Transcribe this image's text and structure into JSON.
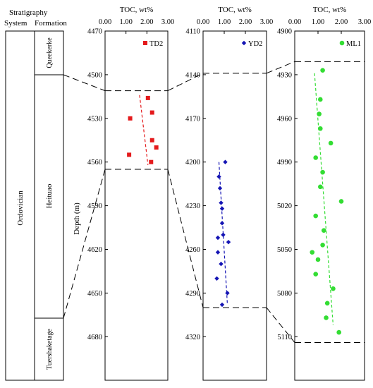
{
  "header": {
    "stratigraphy": "Stratigraphy",
    "system": "System",
    "formation": "Formation"
  },
  "strat_column": {
    "system_label": "Ordovician",
    "formations": [
      "Queekerke",
      "Heituao",
      "Tuershaketage"
    ]
  },
  "depth_axis_label": "Depth (m)",
  "colors": {
    "TD2": "#e41a1c",
    "YD2": "#1414b4",
    "ML1": "#33dd33"
  },
  "chart_data": [
    {
      "type": "scatter",
      "well": "TD2",
      "marker": "square",
      "xlabel": "TOC, wt%",
      "ylabel": "Depth (m)",
      "xlim": [
        0,
        3
      ],
      "ylim": [
        4470,
        4710
      ],
      "y_inverted": true,
      "x_ticks": [
        "0.00",
        "1.00",
        "2.00",
        "3.00"
      ],
      "y_ticks": [
        "4470",
        "4500",
        "4530",
        "4560",
        "4590",
        "4620",
        "4650",
        "4680"
      ],
      "legend": "TD2",
      "legend_position": "top-right",
      "x": [
        2.05,
        1.2,
        2.25,
        2.25,
        2.45,
        1.15,
        2.2
      ],
      "y": [
        4516,
        4530,
        4526,
        4545,
        4550,
        4555,
        4560
      ],
      "trend": {
        "x": [
          1.65,
          2.05
        ],
        "y": [
          4514,
          4562
        ]
      },
      "boundaries": [
        4511,
        4565
      ]
    },
    {
      "type": "scatter",
      "well": "YD2",
      "marker": "diamond",
      "xlabel": "TOC, wt%",
      "xlim": [
        0,
        3
      ],
      "ylim": [
        4110,
        4350
      ],
      "y_inverted": true,
      "x_ticks": [
        "0.00",
        "1.00",
        "2.00",
        "3.00"
      ],
      "y_ticks": [
        "4110",
        "4140",
        "4170",
        "4200",
        "4230",
        "4260",
        "4290",
        "4320"
      ],
      "legend": "YD2",
      "legend_position": "top-right",
      "x": [
        1.05,
        0.75,
        0.8,
        0.85,
        0.9,
        0.9,
        0.95,
        0.7,
        1.2,
        0.7,
        0.85,
        0.65,
        1.15,
        0.9
      ],
      "y": [
        4200,
        4210,
        4218,
        4228,
        4232,
        4242,
        4250,
        4252,
        4255,
        4262,
        4270,
        4280,
        4290,
        4298
      ],
      "trend": {
        "x": [
          0.75,
          1.15
        ],
        "y": [
          4200,
          4298
        ]
      },
      "boundaries": [
        4139,
        4300
      ]
    },
    {
      "type": "scatter",
      "well": "ML1",
      "marker": "circle",
      "xlabel": "TOC, wt%",
      "xlim": [
        0,
        3
      ],
      "ylim": [
        4900,
        5140
      ],
      "y_inverted": true,
      "x_ticks": [
        "0.00",
        "1.00",
        "2.00",
        "3.00"
      ],
      "y_ticks": [
        "4900",
        "4930",
        "4960",
        "4990",
        "5020",
        "5050",
        "5080",
        "5110"
      ],
      "legend": "ML1",
      "legend_position": "top-right",
      "x": [
        1.2,
        1.1,
        1.05,
        1.1,
        1.55,
        0.9,
        1.2,
        1.1,
        2.0,
        0.9,
        1.25,
        1.2,
        0.75,
        1.0,
        0.9,
        1.65,
        1.4,
        1.35,
        1.9
      ],
      "y": [
        4927,
        4947,
        4957,
        4967,
        4977,
        4987,
        4997,
        5007,
        5017,
        5027,
        5037,
        5047,
        5052,
        5057,
        5067,
        5077,
        5087,
        5097,
        5107
      ],
      "trend": {
        "x": [
          0.85,
          1.65
        ],
        "y": [
          4929,
          5102
        ]
      },
      "boundaries": [
        4921,
        5114
      ]
    }
  ]
}
